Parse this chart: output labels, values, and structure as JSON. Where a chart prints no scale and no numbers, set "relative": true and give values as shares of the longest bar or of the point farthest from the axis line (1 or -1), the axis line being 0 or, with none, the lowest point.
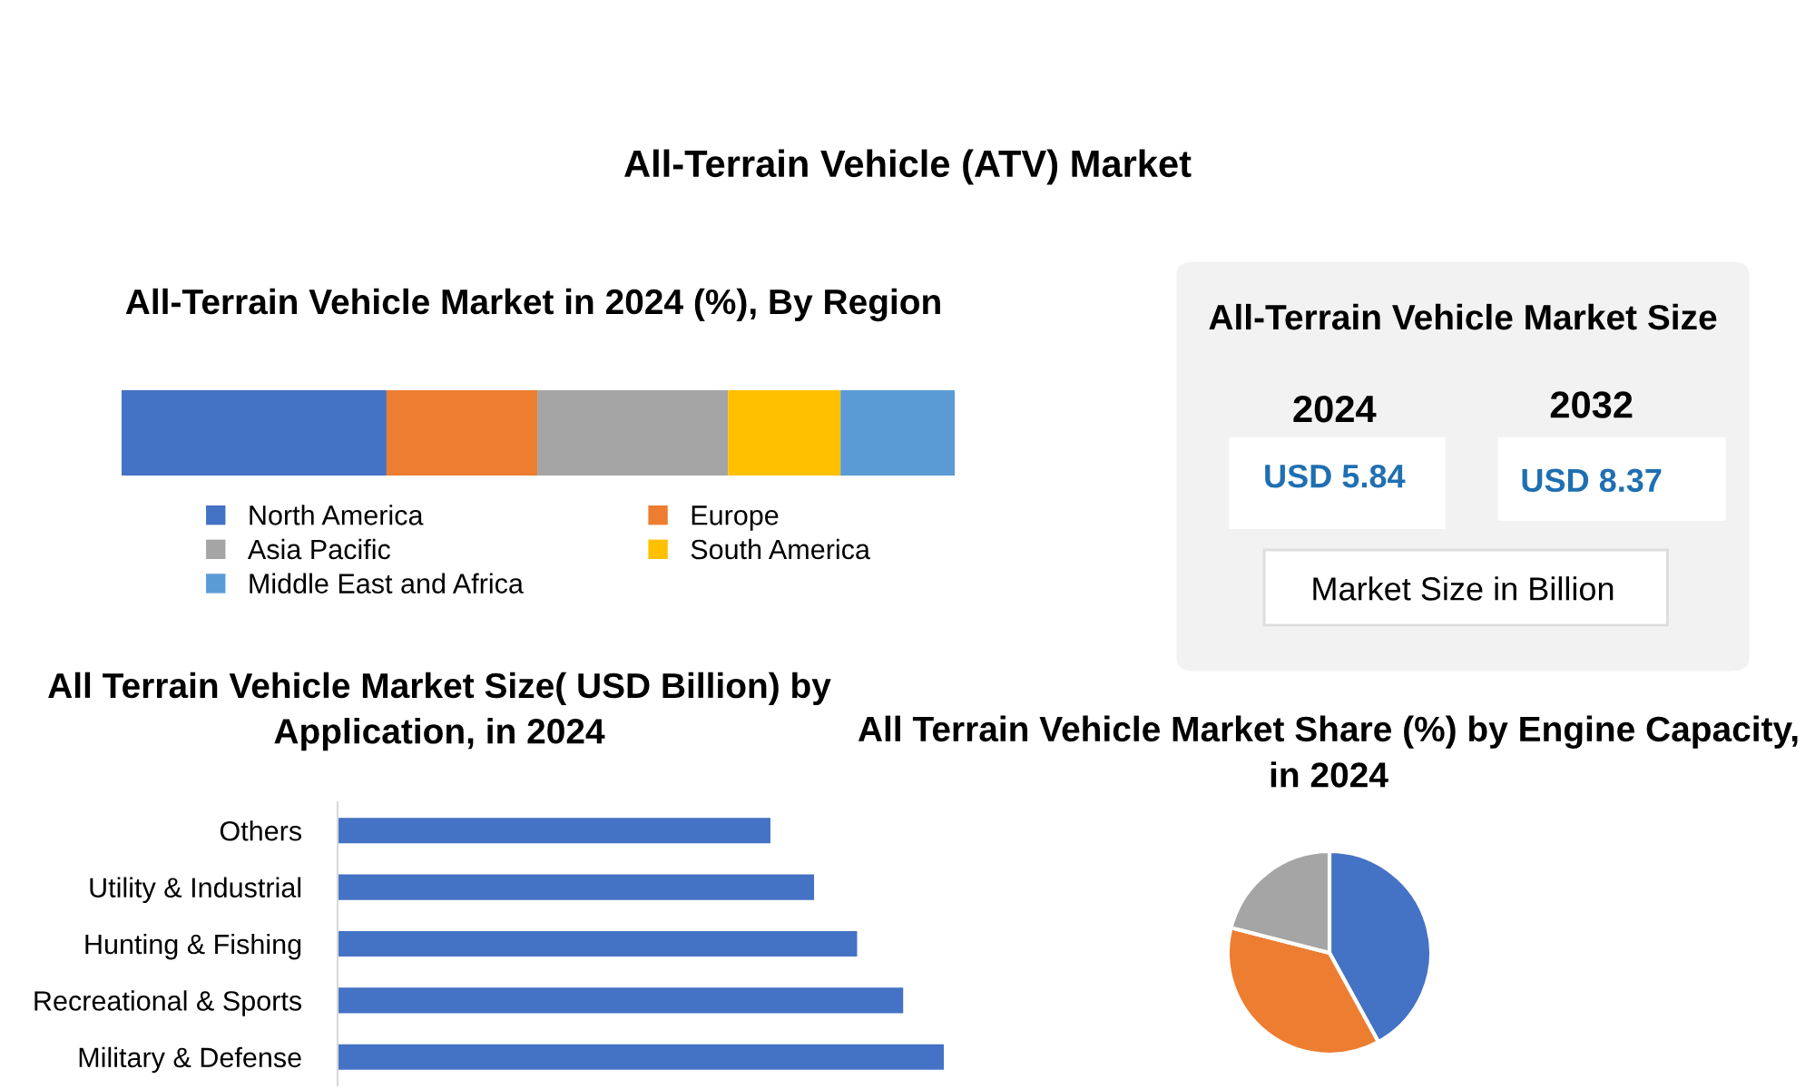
{
  "chart_data": [
    {
      "type": "other",
      "title": "All-Terrain Vehicle (ATV) Market"
    },
    {
      "type": "bar",
      "title": "All-Terrain Vehicle Market in 2024 (%), By Region",
      "orientation": "horizontal",
      "stacked": true,
      "relative": true,
      "categories": [
        null
      ],
      "legend": "bottom",
      "series": [
        {
          "name": "North America",
          "color": "#4472c4",
          "values": [
            0.318
          ]
        },
        {
          "name": "Europe",
          "color": "#ed7d31",
          "values": [
            0.181
          ]
        },
        {
          "name": "Asia Pacific",
          "color": "#a5a5a5",
          "values": [
            0.229
          ]
        },
        {
          "name": "South America",
          "color": "#ffc000",
          "values": [
            0.135
          ]
        },
        {
          "name": "Middle East and Africa",
          "color": "#5b9bd5",
          "values": [
            0.137
          ]
        }
      ]
    },
    {
      "type": "other",
      "title": "All-Terrain Vehicle Market Size",
      "annotations": [
        "2024",
        "USD 5.84",
        "2032",
        "USD 8.37",
        "Market Size in Billion"
      ]
    },
    {
      "type": "bar",
      "title": "All Terrain Vehicle Market Size( USD Billion) by Application, in 2024",
      "orientation": "horizontal",
      "relative": true,
      "categories": [
        "Others",
        "Utility & Industrial",
        "Hunting & Fishing",
        "Recreational & Sports",
        "Military & Defense"
      ],
      "series": [
        {
          "color": "#4472c4",
          "values": [
            0.714,
            0.786,
            0.857,
            0.933,
            1
          ]
        }
      ]
    },
    {
      "type": "pie",
      "title": "All Terrain Vehicle Market Share (%) by Engine Capacity, in 2024",
      "categories": [
        null,
        null,
        null
      ],
      "values": [
        42,
        37,
        21
      ],
      "colors": [
        "#4472c4",
        "#ed7d31",
        "#a5a5a5"
      ]
    }
  ]
}
